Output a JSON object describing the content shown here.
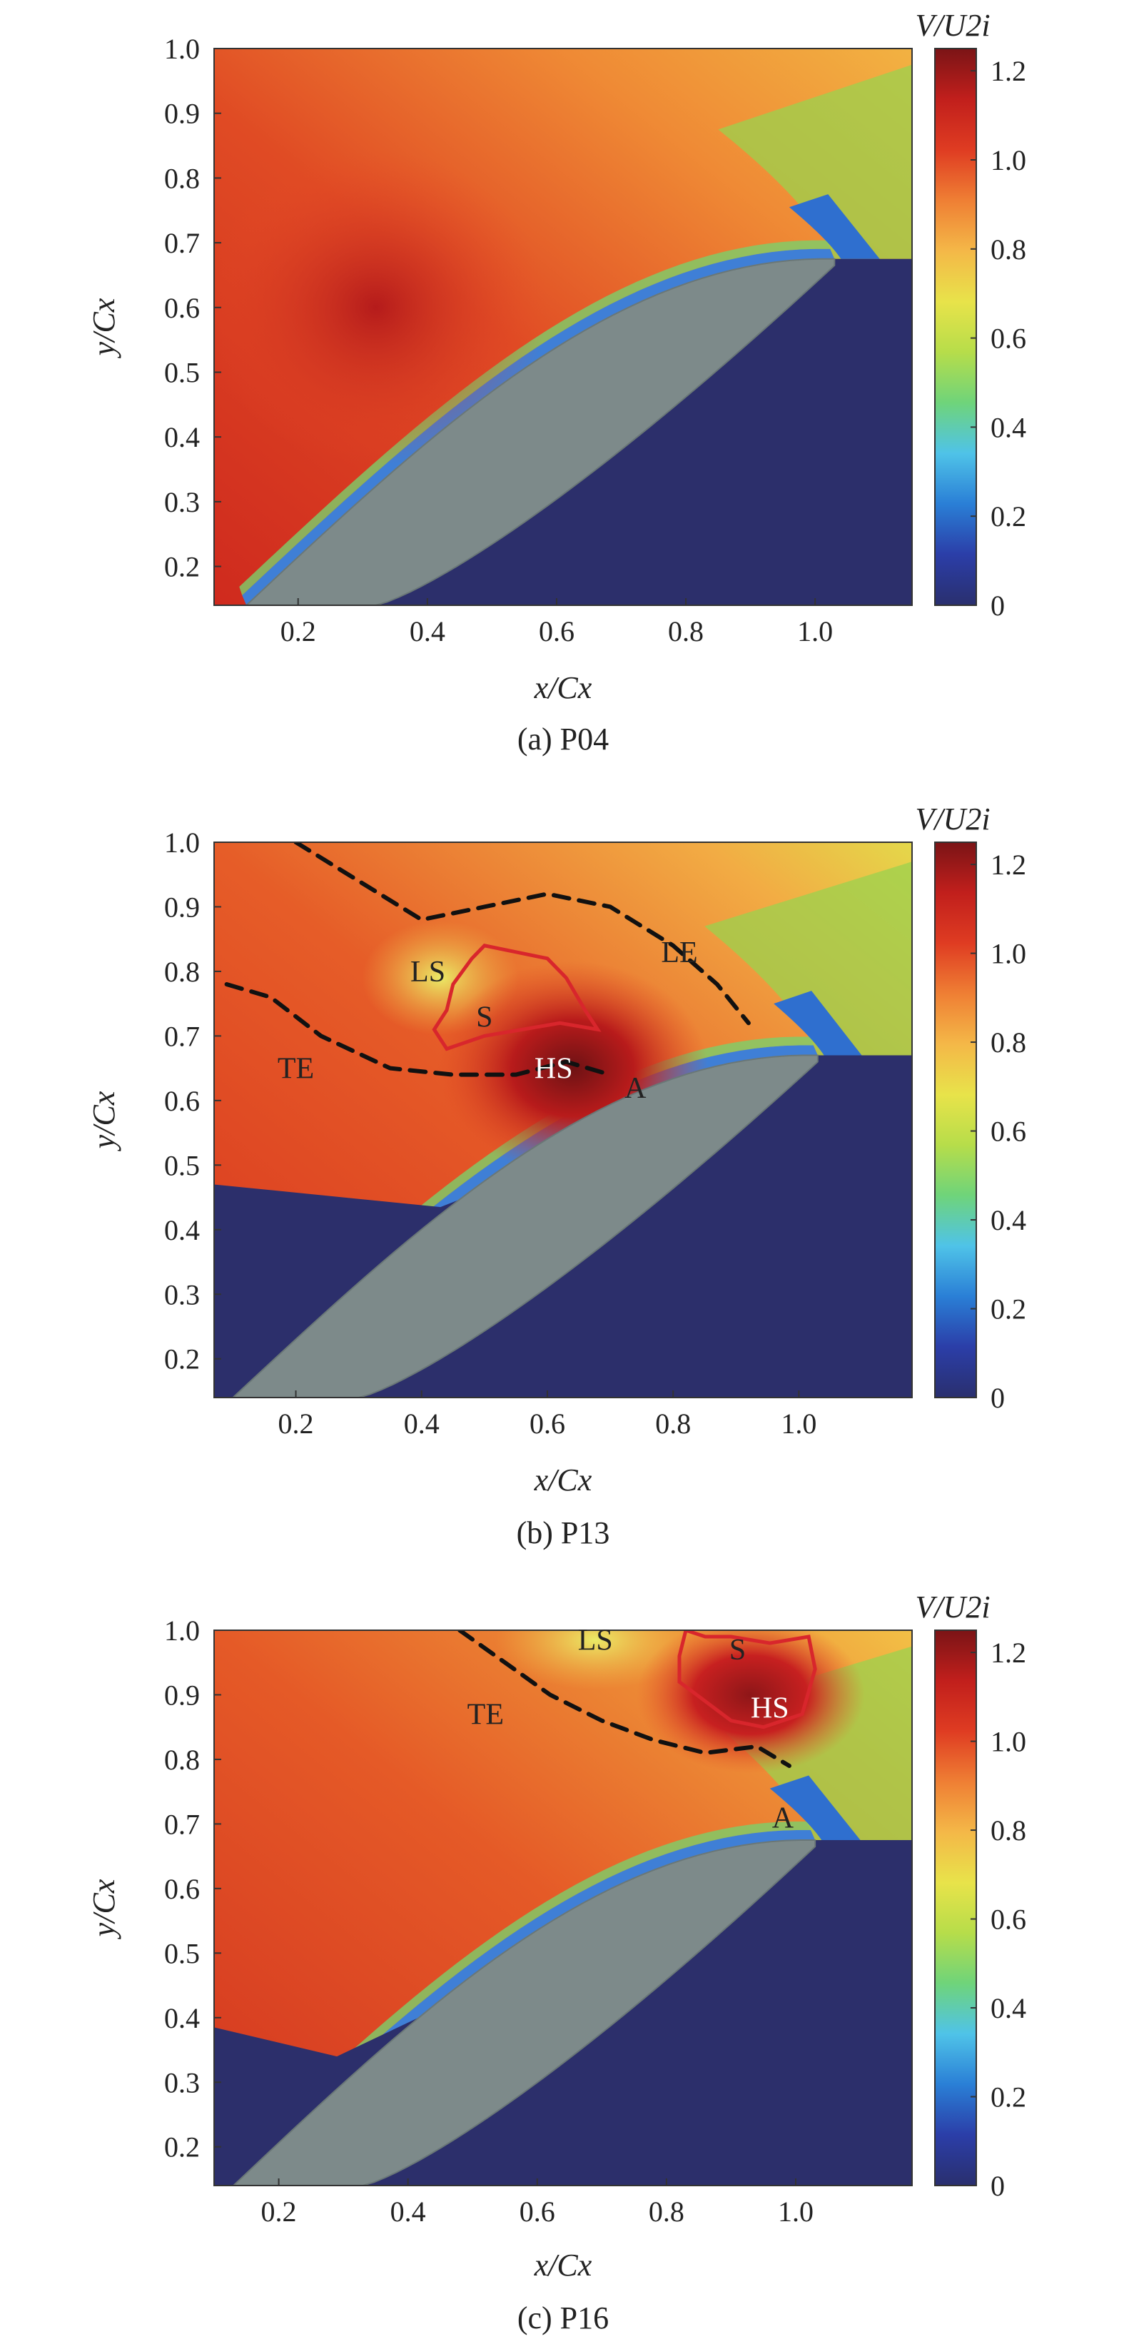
{
  "colorbar": {
    "title": "V/U2i",
    "ticks": [
      "1.2",
      "1.0",
      "0.8",
      "0.6",
      "0.4",
      "0.2",
      "0"
    ],
    "tick_values": [
      1.2,
      1.0,
      0.8,
      0.6,
      0.4,
      0.2,
      0
    ],
    "range": [
      0,
      1.25
    ],
    "colors": [
      "#2a2f6e",
      "#2b3ea8",
      "#2a7fd6",
      "#4fc3e8",
      "#6fd47a",
      "#b7dd4a",
      "#e8e34a",
      "#f4b848",
      "#ef7f34",
      "#df3c22",
      "#c11f1c",
      "#7b1416"
    ]
  },
  "chart_data": [
    {
      "type": "heatmap",
      "caption": "(a) P04",
      "xlabel": "x/Cx",
      "ylabel": "y/Cx",
      "xlim": [
        0.07,
        1.15
      ],
      "ylim": [
        0.14,
        1.0
      ],
      "xticks": [
        "0.2",
        "0.4",
        "0.6",
        "0.8",
        "1.0"
      ],
      "xtick_values": [
        0.2,
        0.4,
        0.6,
        0.8,
        1.0
      ],
      "yticks": [
        "0.2",
        "0.3",
        "0.4",
        "0.5",
        "0.6",
        "0.7",
        "0.8",
        "0.9",
        "1.0"
      ],
      "ytick_values": [
        0.2,
        0.3,
        0.4,
        0.5,
        0.6,
        0.7,
        0.8,
        0.9,
        1.0
      ],
      "annotations": []
    },
    {
      "type": "heatmap",
      "caption": "(b) P13",
      "xlabel": "x/Cx",
      "ylabel": "y/Cx",
      "xlim": [
        0.07,
        1.18
      ],
      "ylim": [
        0.14,
        1.0
      ],
      "xticks": [
        "0.2",
        "0.4",
        "0.6",
        "0.8",
        "1.0"
      ],
      "xtick_values": [
        0.2,
        0.4,
        0.6,
        0.8,
        1.0
      ],
      "yticks": [
        "0.2",
        "0.3",
        "0.4",
        "0.5",
        "0.6",
        "0.7",
        "0.8",
        "0.9",
        "1.0"
      ],
      "ytick_values": [
        0.2,
        0.3,
        0.4,
        0.5,
        0.6,
        0.7,
        0.8,
        0.9,
        1.0
      ],
      "annotations": [
        {
          "text": "LS",
          "x": 0.41,
          "y": 0.8
        },
        {
          "text": "S",
          "x": 0.5,
          "y": 0.73
        },
        {
          "text": "LE",
          "x": 0.81,
          "y": 0.83
        },
        {
          "text": "TE",
          "x": 0.2,
          "y": 0.65
        },
        {
          "text": "HS",
          "x": 0.61,
          "y": 0.65,
          "white": true
        },
        {
          "text": "A",
          "x": 0.74,
          "y": 0.62
        }
      ],
      "dashed_lines": [
        {
          "name": "LE",
          "points": [
            [
              0.2,
              1.0
            ],
            [
              0.3,
              0.94
            ],
            [
              0.4,
              0.88
            ],
            [
              0.5,
              0.9
            ],
            [
              0.6,
              0.92
            ],
            [
              0.7,
              0.9
            ],
            [
              0.8,
              0.84
            ],
            [
              0.87,
              0.78
            ],
            [
              0.92,
              0.72
            ]
          ]
        },
        {
          "name": "TE",
          "points": [
            [
              0.09,
              0.78
            ],
            [
              0.16,
              0.76
            ],
            [
              0.24,
              0.7
            ],
            [
              0.35,
              0.65
            ],
            [
              0.45,
              0.64
            ],
            [
              0.55,
              0.64
            ],
            [
              0.63,
              0.66
            ],
            [
              0.7,
              0.64
            ]
          ]
        }
      ],
      "contours": [
        {
          "name": "S",
          "points": [
            [
              0.5,
              0.84
            ],
            [
              0.55,
              0.83
            ],
            [
              0.6,
              0.82
            ],
            [
              0.63,
              0.79
            ],
            [
              0.66,
              0.74
            ],
            [
              0.68,
              0.71
            ],
            [
              0.62,
              0.72
            ],
            [
              0.56,
              0.71
            ],
            [
              0.5,
              0.7
            ],
            [
              0.44,
              0.68
            ],
            [
              0.42,
              0.71
            ],
            [
              0.44,
              0.74
            ],
            [
              0.45,
              0.78
            ],
            [
              0.48,
              0.82
            ]
          ]
        }
      ]
    },
    {
      "type": "heatmap",
      "caption": "(c) P16",
      "xlabel": "x/Cx",
      "ylabel": "y/Cx",
      "xlim": [
        0.1,
        1.18
      ],
      "ylim": [
        0.14,
        1.0
      ],
      "xticks": [
        "0.2",
        "0.4",
        "0.6",
        "0.8",
        "1.0"
      ],
      "xtick_values": [
        0.2,
        0.4,
        0.6,
        0.8,
        1.0
      ],
      "yticks": [
        "0.2",
        "0.3",
        "0.4",
        "0.5",
        "0.6",
        "0.7",
        "0.8",
        "0.9",
        "1.0"
      ],
      "ytick_values": [
        0.2,
        0.3,
        0.4,
        0.5,
        0.6,
        0.7,
        0.8,
        0.9,
        1.0
      ],
      "annotations": [
        {
          "text": "LS",
          "x": 0.69,
          "y": 0.985
        },
        {
          "text": "S",
          "x": 0.91,
          "y": 0.97
        },
        {
          "text": "TE",
          "x": 0.52,
          "y": 0.87
        },
        {
          "text": "HS",
          "x": 0.96,
          "y": 0.88,
          "white": true
        },
        {
          "text": "A",
          "x": 0.98,
          "y": 0.71
        }
      ],
      "dashed_lines": [
        {
          "name": "TE",
          "points": [
            [
              0.48,
              1.0
            ],
            [
              0.55,
              0.95
            ],
            [
              0.62,
              0.9
            ],
            [
              0.7,
              0.86
            ],
            [
              0.78,
              0.83
            ],
            [
              0.86,
              0.81
            ],
            [
              0.94,
              0.82
            ],
            [
              0.99,
              0.79
            ]
          ]
        }
      ],
      "contours": [
        {
          "name": "S",
          "points": [
            [
              0.83,
              1.0
            ],
            [
              0.86,
              0.99
            ],
            [
              0.9,
              0.99
            ],
            [
              0.96,
              0.98
            ],
            [
              1.02,
              0.99
            ],
            [
              1.03,
              0.94
            ],
            [
              1.01,
              0.87
            ],
            [
              0.95,
              0.85
            ],
            [
              0.9,
              0.86
            ],
            [
              0.86,
              0.89
            ],
            [
              0.82,
              0.92
            ],
            [
              0.82,
              0.96
            ]
          ]
        }
      ]
    }
  ]
}
